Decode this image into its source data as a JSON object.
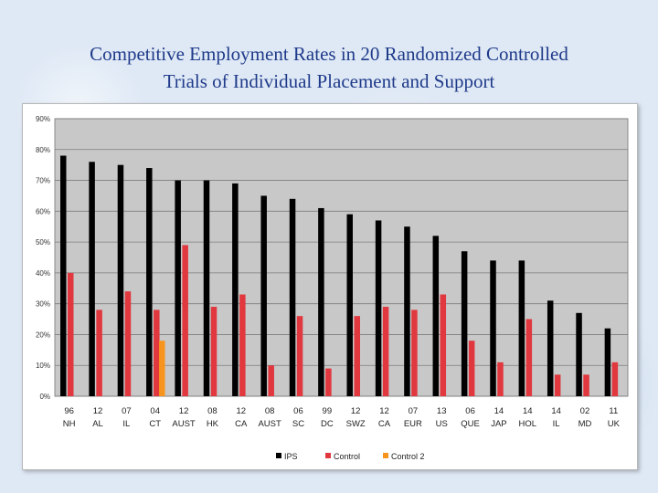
{
  "title_line1": "Competitive Employment Rates in 20 Randomized Controlled",
  "title_line2": "Trials of Individual Placement and Support",
  "chart_data": {
    "type": "bar",
    "title": "",
    "xlabel": "",
    "ylabel": "",
    "ylim": [
      0,
      90
    ],
    "y_tick_values": [
      0,
      10,
      20,
      30,
      40,
      50,
      60,
      70,
      80,
      90
    ],
    "y_tick_labels": [
      "0%",
      "10%",
      "20%",
      "30%",
      "40%",
      "50%",
      "60%",
      "70%",
      "80%",
      "90%"
    ],
    "grid": true,
    "legend_position": "bottom",
    "categories": [
      {
        "year": "96",
        "site": "NH"
      },
      {
        "year": "12",
        "site": "AL"
      },
      {
        "year": "07",
        "site": "IL"
      },
      {
        "year": "04",
        "site": "CT"
      },
      {
        "year": "12",
        "site": "AUST"
      },
      {
        "year": "08",
        "site": "HK"
      },
      {
        "year": "12",
        "site": "CA"
      },
      {
        "year": "08",
        "site": "AUST"
      },
      {
        "year": "06",
        "site": "SC"
      },
      {
        "year": "99",
        "site": "DC"
      },
      {
        "year": "12",
        "site": "SWZ"
      },
      {
        "year": "12",
        "site": "CA"
      },
      {
        "year": "07",
        "site": "EUR"
      },
      {
        "year": "13",
        "site": "US"
      },
      {
        "year": "06",
        "site": "QUE"
      },
      {
        "year": "14",
        "site": "JAP"
      },
      {
        "year": "14",
        "site": "HOL"
      },
      {
        "year": "14",
        "site": "IL"
      },
      {
        "year": "02",
        "site": "MD"
      },
      {
        "year": "11",
        "site": "UK"
      }
    ],
    "series": [
      {
        "name": "IPS",
        "color": "#000000",
        "values": [
          78,
          76,
          75,
          74,
          70,
          70,
          69,
          65,
          64,
          61,
          59,
          57,
          55,
          52,
          47,
          44,
          44,
          31,
          27,
          22
        ]
      },
      {
        "name": "Control",
        "color": "#e0383e",
        "values": [
          40,
          28,
          34,
          28,
          49,
          29,
          33,
          10,
          26,
          9,
          26,
          29,
          28,
          33,
          18,
          11,
          25,
          7,
          7,
          11
        ]
      },
      {
        "name": "Control 2",
        "color": "#f7941d",
        "values": [
          null,
          null,
          null,
          18,
          null,
          null,
          null,
          null,
          null,
          null,
          null,
          null,
          null,
          null,
          null,
          null,
          null,
          null,
          null,
          null
        ]
      }
    ]
  }
}
